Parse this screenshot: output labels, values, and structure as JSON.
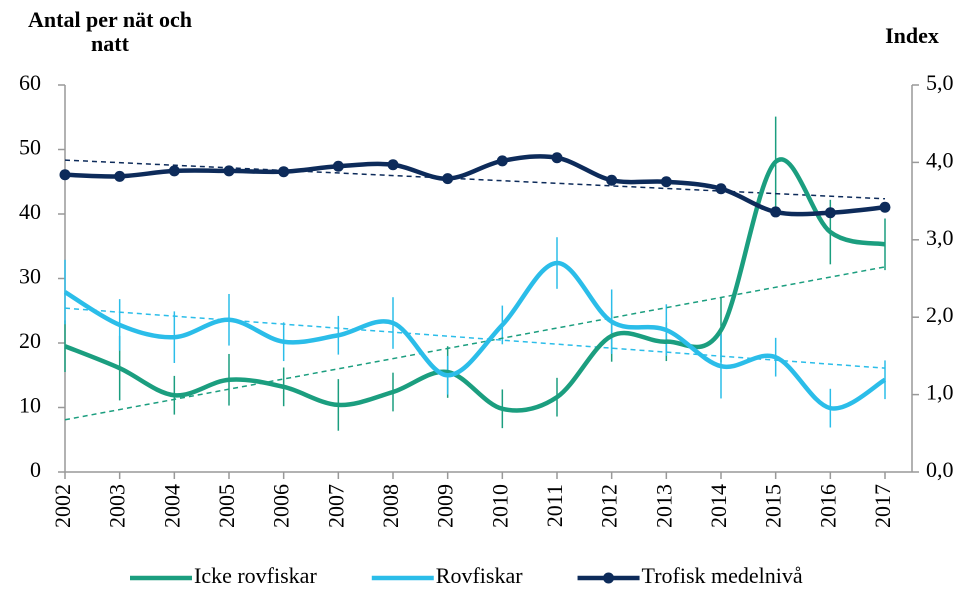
{
  "chart_data": {
    "type": "line",
    "y_label": "Antal per nät och natt",
    "y2_label": "Index",
    "categories": [
      "2002",
      "2003",
      "2004",
      "2005",
      "2006",
      "2007",
      "2008",
      "2009",
      "2010",
      "2011",
      "2012",
      "2013",
      "2014",
      "2015",
      "2016",
      "2017"
    ],
    "ylim": [
      0,
      60
    ],
    "yticks": [
      0,
      10,
      20,
      30,
      40,
      50,
      60
    ],
    "y2lim": [
      0,
      5
    ],
    "y2ticks": [
      {
        "value": 0,
        "label": "0,0"
      },
      {
        "value": 1,
        "label": "1,0"
      },
      {
        "value": 2,
        "label": "2,0"
      },
      {
        "value": 3,
        "label": "3,0"
      },
      {
        "value": 4,
        "label": "4,0"
      },
      {
        "value": 5,
        "label": "5,0"
      }
    ],
    "series": [
      {
        "name": "Icke rovfiskar",
        "color": "#1b9e7f",
        "values": [
          19.5,
          16.1,
          11.9,
          14.3,
          13.2,
          10.4,
          12.4,
          15.5,
          9.8,
          11.6,
          21.1,
          20.2,
          22.0,
          48.1,
          37.2,
          35.3
        ],
        "errors": [
          4,
          5,
          3,
          4,
          3,
          4,
          3,
          4,
          3,
          3,
          4,
          3,
          5,
          7,
          5,
          4
        ],
        "trend": [
          8.1,
          31.8
        ]
      },
      {
        "name": "Rovfiskar",
        "color": "#2bbde9",
        "values": [
          27.9,
          22.8,
          20.9,
          23.6,
          20.2,
          21.2,
          23.1,
          15.0,
          22.8,
          32.4,
          23.3,
          22.0,
          16.4,
          17.8,
          9.9,
          14.3
        ],
        "errors": [
          5,
          4,
          4,
          4,
          3,
          3,
          4,
          3,
          3,
          4,
          5,
          4,
          5,
          3,
          3,
          3
        ],
        "trend": [
          25.4,
          16.1
        ]
      },
      {
        "name": "Trofisk medelnivå",
        "color": "#0d2b5a",
        "axis": "y2",
        "markers": true,
        "values": [
          3.84,
          3.82,
          3.89,
          3.89,
          3.88,
          3.95,
          3.97,
          3.79,
          4.02,
          4.06,
          3.77,
          3.75,
          3.66,
          3.36,
          3.35,
          3.42
        ],
        "trend": [
          4.03,
          3.53
        ]
      }
    ]
  }
}
